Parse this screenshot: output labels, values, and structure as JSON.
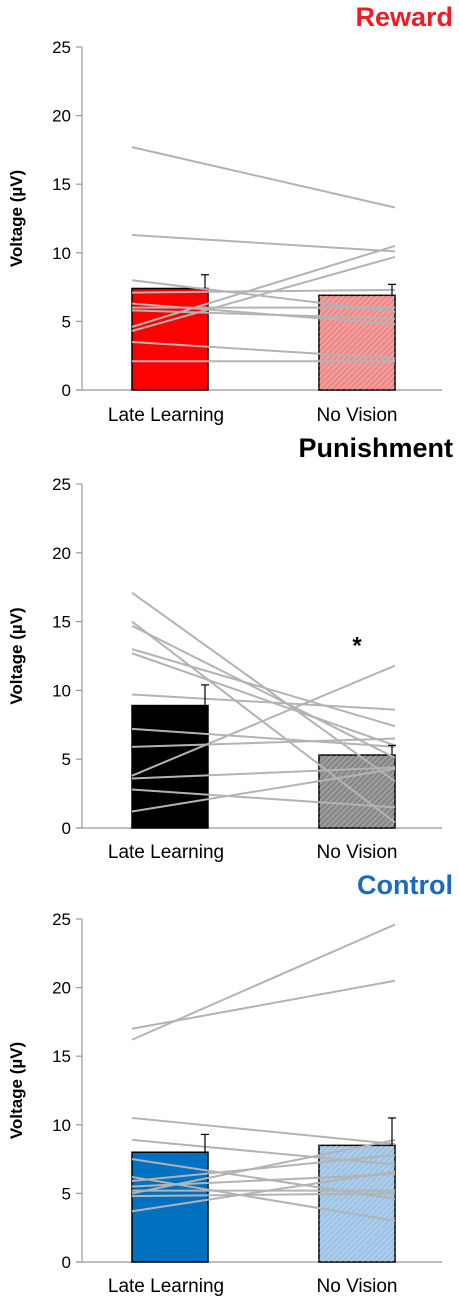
{
  "chart_data": [
    {
      "type": "bar",
      "title": "Reward",
      "title_color": "#ee1c24",
      "ylabel": "Voltage (µV)",
      "ylim": [
        0,
        25
      ],
      "yticks": [
        "0",
        "5",
        "10",
        "15",
        "20",
        "25"
      ],
      "categories": [
        "Late Learning",
        "No Vision"
      ],
      "values": [
        7.4,
        6.9
      ],
      "errors": [
        1.0,
        0.8
      ],
      "bar_colors": [
        "#ff0000",
        "#ee8a8a"
      ],
      "patterns": [
        false,
        true
      ],
      "significance": [
        "",
        ""
      ],
      "subjects": [
        [
          17.7,
          13.3
        ],
        [
          11.3,
          10.1
        ],
        [
          8.0,
          5.7
        ],
        [
          7.1,
          7.3
        ],
        [
          6.3,
          4.8
        ],
        [
          6.0,
          6.0
        ],
        [
          5.8,
          5.2
        ],
        [
          4.6,
          10.5
        ],
        [
          4.3,
          9.7
        ],
        [
          3.5,
          2.3
        ],
        [
          2.1,
          2.1
        ]
      ]
    },
    {
      "type": "bar",
      "title": "Punishment",
      "title_color": "#000000",
      "ylabel": "Voltage (µV)",
      "ylim": [
        0,
        25
      ],
      "yticks": [
        "0",
        "5",
        "10",
        "15",
        "20",
        "25"
      ],
      "categories": [
        "Late Learning",
        "No Vision"
      ],
      "values": [
        8.9,
        5.3
      ],
      "errors": [
        1.5,
        0.7
      ],
      "bar_colors": [
        "#000000",
        "#888888"
      ],
      "patterns": [
        false,
        true
      ],
      "significance": [
        "",
        "*"
      ],
      "subjects": [
        [
          17.1,
          3.4
        ],
        [
          15.0,
          0.4
        ],
        [
          14.7,
          5.1
        ],
        [
          13.0,
          7.4
        ],
        [
          12.7,
          6.0
        ],
        [
          9.7,
          8.6
        ],
        [
          7.2,
          5.9
        ],
        [
          5.9,
          6.5
        ],
        [
          3.8,
          11.8
        ],
        [
          3.6,
          4.4
        ],
        [
          2.8,
          1.5
        ],
        [
          1.2,
          4.3
        ]
      ]
    },
    {
      "type": "bar",
      "title": "Control",
      "title_color": "#1a6bbb",
      "ylabel": "Voltage (µV)",
      "ylim": [
        0,
        25
      ],
      "yticks": [
        "0",
        "5",
        "10",
        "15",
        "20",
        "25"
      ],
      "categories": [
        "Late Learning",
        "No Vision"
      ],
      "values": [
        8.0,
        8.5
      ],
      "errors": [
        1.3,
        2.0
      ],
      "bar_colors": [
        "#0070c0",
        "#9dc3e6"
      ],
      "patterns": [
        false,
        true
      ],
      "significance": [
        "",
        ""
      ],
      "subjects": [
        [
          16.2,
          24.6
        ],
        [
          17.0,
          20.5
        ],
        [
          10.5,
          8.6
        ],
        [
          8.9,
          7.1
        ],
        [
          7.5,
          4.6
        ],
        [
          6.2,
          3.0
        ],
        [
          5.9,
          7.8
        ],
        [
          5.5,
          6.4
        ],
        [
          5.2,
          5.2
        ],
        [
          5.0,
          8.9
        ],
        [
          4.8,
          5.0
        ],
        [
          3.7,
          6.6
        ]
      ]
    }
  ]
}
